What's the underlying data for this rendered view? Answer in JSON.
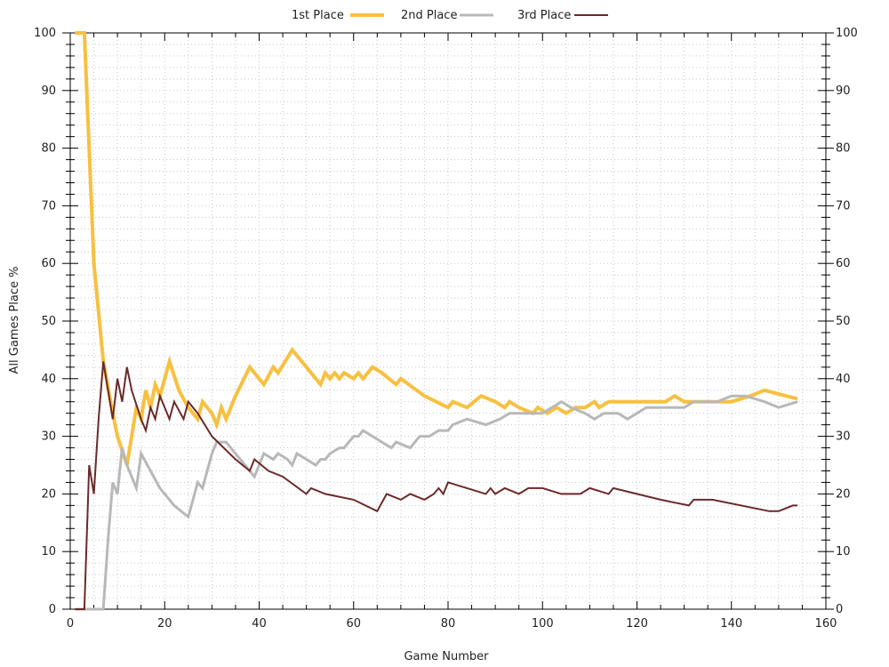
{
  "chart_data": {
    "type": "line",
    "xlabel": "Game Number",
    "ylabel": "All Games Place %",
    "xlim": [
      0,
      160
    ],
    "ylim": [
      0,
      100
    ],
    "x_ticks": [
      0,
      20,
      40,
      60,
      80,
      100,
      120,
      140,
      160
    ],
    "y_ticks": [
      0,
      10,
      20,
      30,
      40,
      50,
      60,
      70,
      80,
      90,
      100
    ],
    "grid": true,
    "legend_position": "top",
    "series": [
      {
        "name": "1st Place",
        "color": "#f8c040",
        "width": 4,
        "points": [
          [
            1,
            100
          ],
          [
            3,
            100
          ],
          [
            5,
            60
          ],
          [
            7,
            43
          ],
          [
            9,
            34
          ],
          [
            10,
            30
          ],
          [
            12,
            25
          ],
          [
            14,
            35
          ],
          [
            15,
            33
          ],
          [
            16,
            38
          ],
          [
            17,
            35
          ],
          [
            18,
            39
          ],
          [
            19,
            37
          ],
          [
            21,
            43
          ],
          [
            23,
            38
          ],
          [
            25,
            35
          ],
          [
            27,
            33
          ],
          [
            28,
            36
          ],
          [
            30,
            34
          ],
          [
            31,
            32
          ],
          [
            32,
            35
          ],
          [
            33,
            33
          ],
          [
            35,
            37
          ],
          [
            38,
            42
          ],
          [
            40,
            40
          ],
          [
            41,
            39
          ],
          [
            43,
            42
          ],
          [
            44,
            41
          ],
          [
            47,
            45
          ],
          [
            49,
            43
          ],
          [
            52,
            40
          ],
          [
            53,
            39
          ],
          [
            54,
            41
          ],
          [
            55,
            40
          ],
          [
            56,
            41
          ],
          [
            57,
            40
          ],
          [
            58,
            41
          ],
          [
            60,
            40
          ],
          [
            61,
            41
          ],
          [
            62,
            40
          ],
          [
            64,
            42
          ],
          [
            66,
            41
          ],
          [
            69,
            39
          ],
          [
            70,
            40
          ],
          [
            75,
            37
          ],
          [
            80,
            35
          ],
          [
            81,
            36
          ],
          [
            84,
            35
          ],
          [
            87,
            37
          ],
          [
            90,
            36
          ],
          [
            92,
            35
          ],
          [
            93,
            36
          ],
          [
            95,
            35
          ],
          [
            98,
            34
          ],
          [
            99,
            35
          ],
          [
            101,
            34
          ],
          [
            103,
            35
          ],
          [
            105,
            34
          ],
          [
            107,
            35
          ],
          [
            109,
            35
          ],
          [
            111,
            36
          ],
          [
            112,
            35
          ],
          [
            114,
            36
          ],
          [
            116,
            36
          ],
          [
            118,
            36
          ],
          [
            120,
            36
          ],
          [
            122,
            36
          ],
          [
            124,
            36
          ],
          [
            126,
            36
          ],
          [
            128,
            37
          ],
          [
            130,
            36
          ],
          [
            133,
            36
          ],
          [
            135,
            36
          ],
          [
            137,
            36
          ],
          [
            140,
            36
          ],
          [
            144,
            37
          ],
          [
            147,
            38
          ],
          [
            154,
            36.5
          ]
        ]
      },
      {
        "name": "2nd Place",
        "color": "#b8b8b8",
        "width": 3,
        "points": [
          [
            1,
            0
          ],
          [
            7,
            0
          ],
          [
            8,
            12
          ],
          [
            9,
            22
          ],
          [
            10,
            20
          ],
          [
            11,
            28
          ],
          [
            12,
            25
          ],
          [
            14,
            21
          ],
          [
            15,
            27
          ],
          [
            17,
            24
          ],
          [
            19,
            21
          ],
          [
            22,
            18
          ],
          [
            25,
            16
          ],
          [
            27,
            22
          ],
          [
            28,
            21
          ],
          [
            30,
            27
          ],
          [
            31,
            29
          ],
          [
            33,
            29
          ],
          [
            38,
            24
          ],
          [
            39,
            23
          ],
          [
            40,
            25
          ],
          [
            41,
            27
          ],
          [
            43,
            26
          ],
          [
            44,
            27
          ],
          [
            46,
            26
          ],
          [
            47,
            25
          ],
          [
            48,
            27
          ],
          [
            52,
            25
          ],
          [
            53,
            26
          ],
          [
            54,
            26
          ],
          [
            55,
            27
          ],
          [
            57,
            28
          ],
          [
            58,
            28
          ],
          [
            60,
            30
          ],
          [
            61,
            30
          ],
          [
            62,
            31
          ],
          [
            64,
            30
          ],
          [
            68,
            28
          ],
          [
            69,
            29
          ],
          [
            72,
            28
          ],
          [
            74,
            30
          ],
          [
            76,
            30
          ],
          [
            78,
            31
          ],
          [
            80,
            31
          ],
          [
            81,
            32
          ],
          [
            84,
            33
          ],
          [
            88,
            32
          ],
          [
            91,
            33
          ],
          [
            93,
            34
          ],
          [
            96,
            34
          ],
          [
            100,
            34
          ],
          [
            102,
            35
          ],
          [
            104,
            36
          ],
          [
            106,
            35
          ],
          [
            109,
            34
          ],
          [
            111,
            33
          ],
          [
            113,
            34
          ],
          [
            116,
            34
          ],
          [
            118,
            33
          ],
          [
            120,
            34
          ],
          [
            122,
            35
          ],
          [
            124,
            35
          ],
          [
            126,
            35
          ],
          [
            128,
            35
          ],
          [
            130,
            35
          ],
          [
            132,
            36
          ],
          [
            135,
            36
          ],
          [
            137,
            36
          ],
          [
            140,
            37
          ],
          [
            143,
            37
          ],
          [
            147,
            36
          ],
          [
            150,
            35
          ],
          [
            154,
            36
          ]
        ]
      },
      {
        "name": "3rd Place",
        "color": "#6b2a2a",
        "width": 2,
        "points": [
          [
            1,
            0
          ],
          [
            3,
            0
          ],
          [
            4,
            25
          ],
          [
            5,
            20
          ],
          [
            6,
            33
          ],
          [
            7,
            43
          ],
          [
            9,
            33
          ],
          [
            10,
            40
          ],
          [
            11,
            36
          ],
          [
            12,
            42
          ],
          [
            13,
            38
          ],
          [
            15,
            33
          ],
          [
            16,
            31
          ],
          [
            17,
            35
          ],
          [
            18,
            33
          ],
          [
            19,
            37
          ],
          [
            21,
            33
          ],
          [
            22,
            36
          ],
          [
            24,
            33
          ],
          [
            25,
            36
          ],
          [
            27,
            34
          ],
          [
            30,
            30
          ],
          [
            35,
            26
          ],
          [
            38,
            24
          ],
          [
            39,
            26
          ],
          [
            42,
            24
          ],
          [
            45,
            23
          ],
          [
            50,
            20
          ],
          [
            51,
            21
          ],
          [
            54,
            20
          ],
          [
            60,
            19
          ],
          [
            65,
            17
          ],
          [
            67,
            20
          ],
          [
            70,
            19
          ],
          [
            72,
            20
          ],
          [
            75,
            19
          ],
          [
            77,
            20
          ],
          [
            78,
            21
          ],
          [
            79,
            20
          ],
          [
            80,
            22
          ],
          [
            84,
            21
          ],
          [
            88,
            20
          ],
          [
            89,
            21
          ],
          [
            90,
            20
          ],
          [
            92,
            21
          ],
          [
            95,
            20
          ],
          [
            97,
            21
          ],
          [
            100,
            21
          ],
          [
            104,
            20
          ],
          [
            108,
            20
          ],
          [
            110,
            21
          ],
          [
            114,
            20
          ],
          [
            115,
            21
          ],
          [
            120,
            20
          ],
          [
            125,
            19
          ],
          [
            131,
            18
          ],
          [
            132,
            19
          ],
          [
            136,
            19
          ],
          [
            148,
            17
          ],
          [
            150,
            17
          ],
          [
            153,
            18
          ],
          [
            154,
            18
          ]
        ]
      }
    ]
  }
}
